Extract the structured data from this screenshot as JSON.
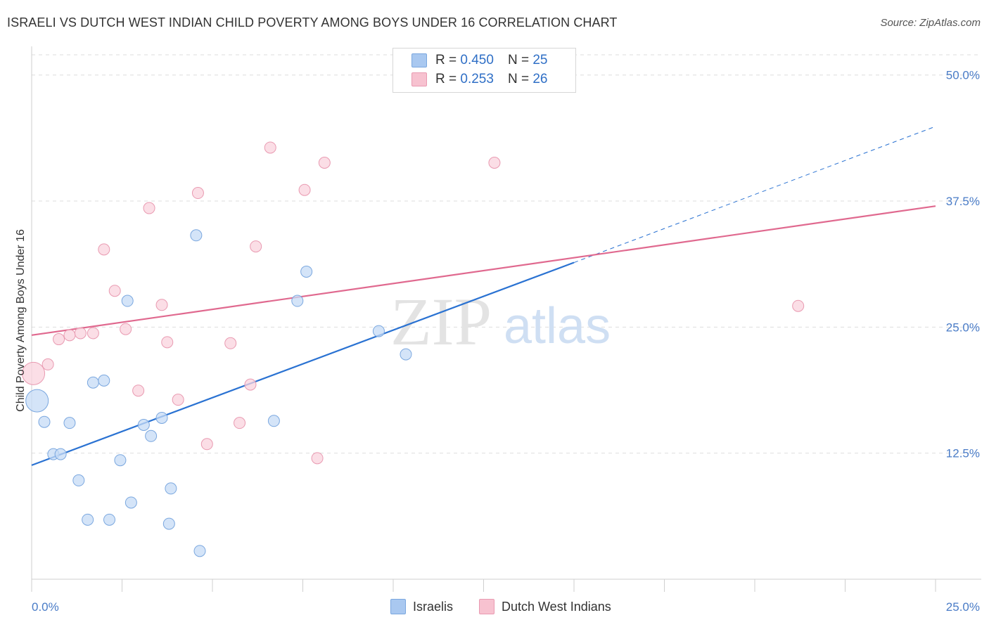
{
  "title": "ISRAELI VS DUTCH WEST INDIAN CHILD POVERTY AMONG BOYS UNDER 16 CORRELATION CHART",
  "source": "Source: ZipAtlas.com",
  "watermark": {
    "zip": "ZIP",
    "atlas": "atlas"
  },
  "legend": {
    "rows": [
      {
        "r_label": "R = ",
        "r_value": "0.450",
        "n_label": "N = ",
        "n_value": "25",
        "color": "#a9c8f0",
        "border": "#7aa7df"
      },
      {
        "r_label": "R = ",
        "r_value": "0.253",
        "n_label": "N = ",
        "n_value": "26",
        "color": "#f7c2d0",
        "border": "#e99ab1"
      }
    ]
  },
  "bottom_legend": [
    "Israelis",
    "Dutch West Indians"
  ],
  "chart_data": {
    "type": "scatter",
    "title": "ISRAELI VS DUTCH WEST INDIAN CHILD POVERTY AMONG BOYS UNDER 16 CORRELATION CHART",
    "xlabel": "",
    "ylabel": "Child Poverty Among Boys Under 16",
    "xlim": [
      0,
      25
    ],
    "ylim": [
      0,
      52
    ],
    "x_tick_labels": [
      "0.0%",
      "25.0%"
    ],
    "y_ticks": [
      12.5,
      25.0,
      37.5,
      50.0
    ],
    "y_tick_labels": [
      "12.5%",
      "25.0%",
      "37.5%",
      "50.0%"
    ],
    "grid": true,
    "series": [
      {
        "name": "Israelis",
        "color": "#7aa7df",
        "fill": "#c5dbf5",
        "line_color": "#2a72d2",
        "trend": {
          "x": [
            0,
            15
          ],
          "y": [
            11.3,
            31.4
          ],
          "dashed_extension": {
            "x": [
              15,
              25
            ],
            "y": [
              31.4,
              44.9
            ]
          }
        },
        "points": [
          {
            "x": 0.15,
            "y": 17.7,
            "big": true
          },
          {
            "x": 0.35,
            "y": 15.6
          },
          {
            "x": 0.6,
            "y": 12.4
          },
          {
            "x": 0.8,
            "y": 12.4
          },
          {
            "x": 1.05,
            "y": 15.5
          },
          {
            "x": 1.3,
            "y": 9.8
          },
          {
            "x": 1.55,
            "y": 5.9
          },
          {
            "x": 1.7,
            "y": 19.5
          },
          {
            "x": 2.0,
            "y": 19.7
          },
          {
            "x": 2.15,
            "y": 5.9
          },
          {
            "x": 2.45,
            "y": 11.8
          },
          {
            "x": 2.65,
            "y": 27.6
          },
          {
            "x": 2.75,
            "y": 7.6
          },
          {
            "x": 3.1,
            "y": 15.3
          },
          {
            "x": 3.3,
            "y": 14.2
          },
          {
            "x": 3.6,
            "y": 16.0
          },
          {
            "x": 3.8,
            "y": 5.5
          },
          {
            "x": 3.85,
            "y": 9.0
          },
          {
            "x": 4.55,
            "y": 34.1
          },
          {
            "x": 4.65,
            "y": 2.8
          },
          {
            "x": 6.7,
            "y": 15.7
          },
          {
            "x": 7.35,
            "y": 27.6
          },
          {
            "x": 7.6,
            "y": 30.5
          },
          {
            "x": 9.6,
            "y": 24.6
          },
          {
            "x": 10.35,
            "y": 22.3
          }
        ]
      },
      {
        "name": "Dutch West Indians",
        "color": "#e99ab1",
        "fill": "#f9d3de",
        "line_color": "#e0698f",
        "trend": {
          "x": [
            0,
            25
          ],
          "y": [
            24.2,
            37.0
          ]
        },
        "points": [
          {
            "x": 0.05,
            "y": 20.4,
            "big": true
          },
          {
            "x": 0.45,
            "y": 21.3
          },
          {
            "x": 0.75,
            "y": 23.8
          },
          {
            "x": 1.05,
            "y": 24.2
          },
          {
            "x": 1.35,
            "y": 24.4
          },
          {
            "x": 1.7,
            "y": 24.4
          },
          {
            "x": 2.0,
            "y": 32.7
          },
          {
            "x": 2.3,
            "y": 28.6
          },
          {
            "x": 2.6,
            "y": 24.8
          },
          {
            "x": 2.95,
            "y": 18.7
          },
          {
            "x": 3.25,
            "y": 36.8
          },
          {
            "x": 3.6,
            "y": 27.2
          },
          {
            "x": 3.75,
            "y": 23.5
          },
          {
            "x": 4.05,
            "y": 17.8
          },
          {
            "x": 4.6,
            "y": 38.3
          },
          {
            "x": 4.85,
            "y": 13.4
          },
          {
            "x": 5.5,
            "y": 23.4
          },
          {
            "x": 5.75,
            "y": 15.5
          },
          {
            "x": 6.05,
            "y": 19.3
          },
          {
            "x": 6.2,
            "y": 33.0
          },
          {
            "x": 6.6,
            "y": 42.8
          },
          {
            "x": 7.55,
            "y": 38.6
          },
          {
            "x": 7.9,
            "y": 12.0
          },
          {
            "x": 8.1,
            "y": 41.3
          },
          {
            "x": 12.8,
            "y": 41.3
          },
          {
            "x": 21.2,
            "y": 27.1
          }
        ]
      }
    ]
  }
}
